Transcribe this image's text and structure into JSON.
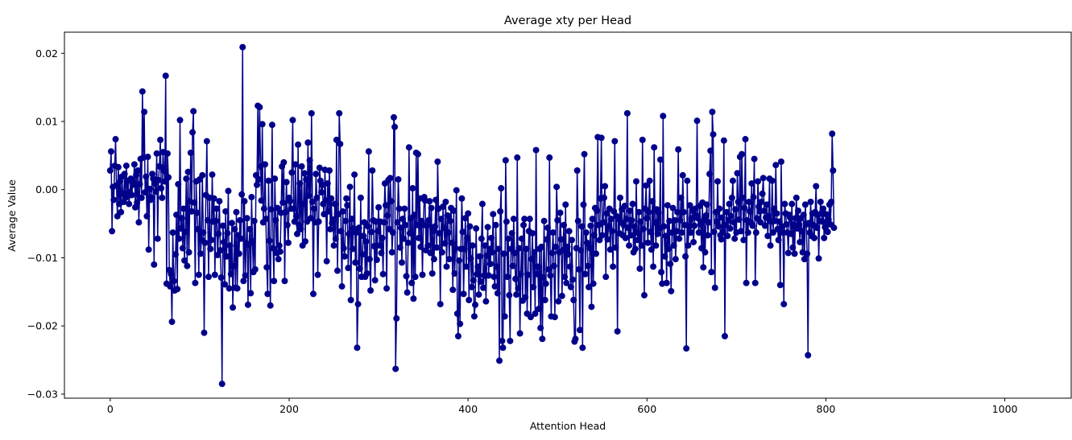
{
  "chart_data": {
    "type": "line",
    "title": "Average xty per Head",
    "xlabel": "Attention Head",
    "ylabel": "Average Value",
    "xlim": [
      -51.2,
      1074.2
    ],
    "ylim": [
      -0.0306,
      0.0231
    ],
    "x_ticks": [
      0,
      200,
      400,
      600,
      800,
      1000
    ],
    "x_tick_labels": [
      "0",
      "200",
      "400",
      "600",
      "800",
      "1000"
    ],
    "y_ticks": [
      -0.03,
      -0.02,
      -0.01,
      0.0,
      0.01,
      0.02
    ],
    "y_tick_labels": [
      "−0.03",
      "−0.02",
      "−0.01",
      "0.00",
      "0.01",
      "0.02"
    ],
    "grid": false,
    "legend": "none",
    "series": [
      {
        "color": "#00008b",
        "marker": "circle",
        "x_start": 0,
        "x_step": 1,
        "values": [
          0.0028,
          0.0056,
          -0.0061,
          0.0004,
          -0.0015,
          0.0035,
          0.0074,
          0.0006,
          -0.0039,
          0.0033,
          -0.0021,
          0.0012,
          -0.0033,
          0.0019,
          -0.0006,
          -0.0018,
          0.0023,
          -0.0012,
          0.0035,
          -0.0006,
          0.0013,
          -0.0021,
          -0.0004,
          0.0016,
          -0.0008,
          0.0007,
          0.0009,
          0.0037,
          -0.0026,
          0.0021,
          -0.0019,
          0.0028,
          -0.0048,
          0.0008,
          0.0045,
          -0.0012,
          0.0144,
          0.0047,
          0.0114,
          -0.0004,
          0.0019,
          -0.0039,
          0.0048,
          -0.0088,
          0.0001,
          -0.0015,
          -0.0012,
          0.0023,
          0.0016,
          -0.011,
          0.0009,
          -0.0003,
          0.0053,
          -0.0072,
          0.0014,
          0.0034,
          0.0073,
          0.0002,
          -0.0012,
          0.0055,
          0.0028,
          0.0012,
          0.0167,
          -0.0138,
          0.0053,
          0.0018,
          -0.0118,
          -0.0142,
          -0.0124,
          -0.0194,
          -0.0063,
          -0.0134,
          -0.0148,
          -0.0095,
          -0.0037,
          -0.0146,
          0.0008,
          -0.0072,
          0.0102,
          -0.0057,
          -0.0042,
          -0.0086,
          -0.0028,
          -0.0104,
          -0.0062,
          0.0016,
          -0.0112,
          0.0026,
          -0.0092,
          -0.0017,
          0.0054,
          -0.0032,
          0.0084,
          0.0115,
          -0.0019,
          -0.0137,
          0.0012,
          -0.0034,
          -0.0058,
          -0.0125,
          0.0015,
          -0.0094,
          -0.0073,
          0.0021,
          -0.0063,
          -0.021,
          -0.0078,
          -0.0008,
          0.0071,
          -0.0045,
          -0.0128,
          -0.0012,
          -0.0087,
          -0.0074,
          0.0022,
          -0.0047,
          -0.0013,
          -0.0125,
          -0.0046,
          -0.0028,
          -0.0096,
          -0.0065,
          -0.0017,
          -0.0089,
          -0.0129,
          -0.0285,
          -0.0053,
          -0.0077,
          -0.0139,
          -0.0032,
          -0.0098,
          -0.0064,
          -0.0002,
          -0.0145,
          -0.0082,
          -0.0124,
          -0.0049,
          -0.0173,
          -0.0112,
          -0.0058,
          -0.0144,
          -0.0033,
          -0.0145,
          -0.0067,
          -0.0094,
          -0.0045,
          -0.0072,
          -0.0007,
          0.0209,
          -0.0134,
          -0.0017,
          -0.0126,
          -0.0079,
          -0.0042,
          -0.0169,
          -0.0081,
          -0.0058,
          -0.0152,
          -0.0011,
          -0.0076,
          -0.0121,
          -0.0046,
          -0.0117,
          0.0021,
          0.0007,
          0.0123,
          0.0015,
          0.0121,
          0.0034,
          -0.0016,
          0.0096,
          -0.0048,
          -0.0028,
          0.0037,
          -0.0043,
          -0.0114,
          -0.0153,
          0.0013,
          -0.0075,
          -0.017,
          -0.0029,
          0.0095,
          -0.0086,
          -0.0134,
          0.0016,
          -0.0045,
          -0.0093,
          -0.0027,
          -0.0102,
          -0.0082,
          -0.0091,
          -0.0034,
          0.0034,
          -0.0019,
          0.004,
          -0.0134,
          -0.0033,
          0.0011,
          -0.0052,
          -0.0078,
          -0.0012,
          -0.0017,
          -0.0028,
          0.0025,
          0.0102,
          -0.0028,
          -0.0047,
          0.0037,
          -0.0039,
          -0.0065,
          0.0066,
          -0.0052,
          0.0009,
          -0.0058,
          0.0034,
          -0.0082,
          -0.0021,
          0.0024,
          -0.0076,
          0.0015,
          -0.0047,
          0.0069,
          -0.0009,
          0.0043,
          -0.0042,
          0.0112,
          -0.0018,
          -0.0153,
          -0.0028,
          -0.0048,
          0.0023,
          -0.0012,
          -0.0125,
          -0.0047,
          0.0032,
          0.0013,
          -0.0004,
          0.0007,
          -0.0021,
          -0.0036,
          0.0029,
          -0.0016,
          -0.0105,
          0.0009,
          -0.0032,
          0.0028,
          -0.0058,
          -0.0013,
          -0.0049,
          -0.0044,
          -0.0082,
          -0.0021,
          -0.0072,
          0.0073,
          -0.0119,
          -0.0036,
          0.0112,
          0.0067,
          -0.0061,
          -0.0142,
          -0.0032,
          -0.0086,
          -0.0098,
          -0.0046,
          -0.0013,
          -0.0023,
          -0.0115,
          -0.0065,
          0.0004,
          -0.0162,
          -0.0043,
          -0.0087,
          -0.0057,
          0.0022,
          -0.0107,
          -0.0063,
          -0.0232,
          -0.0168,
          -0.0056,
          -0.0116,
          -0.0012,
          -0.0128,
          -0.0095,
          -0.0068,
          -0.0048,
          -0.0128,
          -0.0076,
          -0.0123,
          -0.0054,
          0.0056,
          -0.0102,
          -0.0148,
          -0.0062,
          0.0028,
          -0.0045,
          -0.0083,
          -0.0133,
          -0.0047,
          -0.0103,
          -0.0061,
          -0.0026,
          -0.0082,
          -0.0047,
          -0.0093,
          -0.0071,
          -0.0124,
          -0.0048,
          0.0009,
          -0.0023,
          -0.0145,
          -0.0038,
          0.0014,
          -0.0058,
          0.0017,
          -0.0017,
          -0.0092,
          -0.0063,
          0.0106,
          0.0092,
          -0.0263,
          -0.0189,
          -0.0048,
          0.0015,
          -0.0028,
          -0.0085,
          -0.0056,
          -0.0107,
          -0.0043,
          -0.0072,
          -0.0028,
          -0.0052,
          -0.0127,
          -0.0151,
          -0.0078,
          0.0062,
          -0.0064,
          -0.0042,
          -0.0137,
          0.0002,
          -0.016,
          -0.0037,
          -0.0128,
          0.0054,
          -0.0052,
          0.0052,
          -0.0071,
          -0.0013,
          -0.0084,
          -0.0046,
          -0.0125,
          -0.0052,
          -0.0011,
          -0.0016,
          -0.0089,
          -0.0053,
          -0.0082,
          -0.0045,
          -0.0017,
          -0.0093,
          -0.0027,
          -0.0123,
          -0.0061,
          -0.0102,
          -0.0054,
          -0.0015,
          -0.0085,
          0.0041,
          -0.0028,
          -0.0064,
          -0.0168,
          -0.0043,
          -0.0092,
          -0.0025,
          -0.0056,
          -0.0079,
          -0.0018,
          -0.0113,
          -0.0038,
          -0.0063,
          -0.0102,
          -0.0046,
          -0.0027,
          -0.0078,
          -0.0147,
          -0.0031,
          -0.0123,
          -0.0086,
          -0.0001,
          -0.0182,
          -0.0215,
          -0.0104,
          -0.0197,
          -0.0087,
          -0.0013,
          -0.0062,
          -0.0153,
          -0.0087,
          -0.0042,
          -0.0113,
          -0.0071,
          -0.0035,
          -0.0162,
          -0.0054,
          -0.0101,
          -0.0143,
          -0.0082,
          -0.0133,
          -0.0186,
          -0.0169,
          -0.0057,
          -0.0124,
          -0.0113,
          -0.0154,
          -0.0098,
          -0.0135,
          -0.0072,
          -0.0021,
          -0.0144,
          -0.0126,
          -0.0082,
          -0.0164,
          -0.0097,
          -0.0055,
          -0.0126,
          -0.0087,
          -0.0109,
          -0.0071,
          -0.0092,
          -0.0036,
          -0.0128,
          -0.0142,
          -0.0052,
          -0.0113,
          -0.0152,
          -0.0087,
          -0.0251,
          -0.0032,
          0.0002,
          -0.0222,
          -0.0232,
          -0.0094,
          -0.0186,
          0.0043,
          -0.0047,
          -0.0128,
          -0.0072,
          -0.0155,
          -0.0222,
          -0.0087,
          -0.0064,
          -0.0112,
          -0.0043,
          -0.0093,
          -0.0131,
          -0.0154,
          0.0047,
          -0.0145,
          -0.0086,
          -0.0211,
          -0.0124,
          -0.0072,
          -0.0163,
          -0.0052,
          -0.0043,
          -0.0158,
          -0.0087,
          -0.0182,
          -0.0125,
          -0.0061,
          -0.0043,
          -0.0187,
          -0.0102,
          -0.0064,
          -0.0143,
          -0.0092,
          -0.0182,
          0.0058,
          -0.0124,
          -0.0113,
          -0.0175,
          -0.0087,
          -0.0203,
          -0.0084,
          -0.0219,
          -0.0129,
          -0.0046,
          -0.0162,
          -0.0138,
          -0.0073,
          -0.0056,
          -0.0117,
          0.0047,
          -0.0126,
          -0.0186,
          -0.0093,
          -0.0063,
          -0.0112,
          -0.0187,
          -0.0084,
          0.0004,
          -0.0045,
          -0.0164,
          -0.0092,
          -0.0034,
          -0.0073,
          -0.0156,
          -0.0089,
          -0.0052,
          -0.0128,
          -0.0022,
          -0.0137,
          -0.0084,
          -0.0095,
          -0.0061,
          -0.0113,
          -0.0143,
          -0.0074,
          -0.0132,
          -0.0162,
          -0.0223,
          -0.0219,
          -0.0086,
          0.0028,
          -0.0046,
          -0.0117,
          -0.0206,
          -0.0089,
          -0.0054,
          -0.0232,
          -0.0022,
          0.0052,
          -0.0124,
          -0.0063,
          -0.0078,
          -0.0112,
          -0.0143,
          -0.0086,
          -0.0053,
          -0.0172,
          -0.0043,
          -0.0138,
          -0.0067,
          -0.0027,
          -0.0094,
          -0.0031,
          0.0077,
          -0.0052,
          -0.0074,
          -0.0013,
          0.0076,
          -0.0067,
          -0.0048,
          -0.0012,
          0.0005,
          -0.0128,
          -0.0035,
          -0.0073,
          -0.0054,
          -0.0028,
          -0.0088,
          -0.0043,
          -0.0061,
          -0.0113,
          -0.0032,
          0.0071,
          -0.0085,
          -0.0039,
          -0.0208,
          -0.0043,
          -0.0064,
          -0.0012,
          -0.0048,
          -0.0029,
          -0.0067,
          -0.0052,
          -0.0024,
          -0.0071,
          -0.0043,
          0.0112,
          -0.0056,
          -0.0082,
          -0.0031,
          -0.0067,
          -0.0045,
          -0.0021,
          -0.0092,
          -0.0054,
          -0.0087,
          0.0012,
          -0.0063,
          -0.0074,
          -0.0033,
          -0.0116,
          -0.0047,
          -0.0082,
          0.0073,
          -0.0058,
          -0.0155,
          -0.0028,
          0.0006,
          -0.0042,
          -0.0078,
          -0.0033,
          0.0013,
          -0.0062,
          -0.0088,
          -0.0017,
          -0.0113,
          0.0062,
          -0.0048,
          -0.0082,
          -0.0029,
          -0.0065,
          -0.0034,
          -0.0057,
          0.0044,
          -0.0121,
          -0.0138,
          0.0108,
          -0.0054,
          -0.0098,
          -0.0068,
          -0.0137,
          -0.0023,
          -0.0087,
          -0.0046,
          -0.0109,
          -0.0149,
          -0.0063,
          -0.0027,
          -0.0082,
          -0.0045,
          -0.0102,
          -0.0061,
          -0.0033,
          0.0059,
          -0.0072,
          -0.0045,
          -0.0012,
          -0.0063,
          0.0021,
          -0.0033,
          -0.0052,
          -0.0098,
          -0.0233,
          0.0013,
          -0.0082,
          -0.0054,
          -0.0023,
          -0.0063,
          -0.0042,
          -0.0031,
          -0.0077,
          -0.0053,
          -0.0028,
          -0.0038,
          0.0101,
          -0.0042,
          -0.0063,
          -0.0024,
          -0.0051,
          -0.0086,
          -0.0019,
          -0.0114,
          -0.0045,
          -0.0092,
          -0.0038,
          -0.0022,
          -0.0067,
          -0.0048,
          0.0023,
          0.0057,
          -0.0121,
          0.0114,
          0.0081,
          -0.0062,
          -0.0144,
          -0.0033,
          -0.0047,
          0.0012,
          -0.0054,
          -0.0028,
          -0.0067,
          -0.0073,
          -0.0041,
          -0.0062,
          0.0072,
          -0.0215,
          -0.0052,
          -0.0033,
          -0.0068,
          -0.0045,
          -0.0021,
          -0.0057,
          -0.0039,
          -0.0012,
          0.0013,
          -0.0048,
          -0.0072,
          -0.0029,
          -0.0063,
          0.0024,
          -0.0018,
          -0.0044,
          0.0048,
          -0.0061,
          0.0052,
          -0.0012,
          -0.0074,
          -0.0027,
          0.0074,
          -0.0137,
          -0.0045,
          -0.0063,
          -0.0018,
          -0.0032,
          -0.0048,
          0.0009,
          -0.0053,
          -0.0011,
          0.0045,
          -0.0137,
          -0.0063,
          -0.0042,
          0.0012,
          -0.0025,
          -0.0032,
          -0.0048,
          -0.0018,
          -0.0006,
          0.0017,
          -0.0031,
          -0.0053,
          -0.0041,
          -0.0022,
          -0.0068,
          -0.0039,
          0.0016,
          -0.0082,
          -0.0047,
          0.0013,
          -0.0063,
          -0.0028,
          -0.0046,
          0.0036,
          -0.0035,
          -0.0058,
          -0.0074,
          -0.0047,
          -0.014,
          0.0041,
          -0.0054,
          -0.0063,
          -0.0168,
          -0.0021,
          -0.0035,
          -0.0051,
          -0.0063,
          -0.0093,
          -0.0037,
          -0.0041,
          -0.0065,
          -0.0021,
          -0.0085,
          -0.0051,
          -0.0094,
          -0.0042,
          -0.0012,
          -0.0057,
          -0.0031,
          -0.0051,
          -0.0077,
          -0.0042,
          -0.0061,
          -0.0092,
          -0.0037,
          -0.0102,
          -0.0022,
          -0.0051,
          -0.0094,
          -0.0243,
          -0.0049,
          -0.0063,
          -0.0018,
          -0.0068,
          -0.0035,
          -0.0052,
          -0.0071,
          -0.0033,
          0.0005,
          -0.0056,
          -0.0037,
          -0.0101,
          -0.0046,
          -0.0018,
          -0.0035,
          -0.0047,
          -0.0028,
          -0.0071,
          -0.0055,
          -0.0036,
          -0.0047,
          -0.0062,
          -0.0044,
          -0.0022,
          -0.0051,
          -0.0018,
          0.0082,
          0.0028,
          -0.0056
        ]
      }
    ]
  }
}
